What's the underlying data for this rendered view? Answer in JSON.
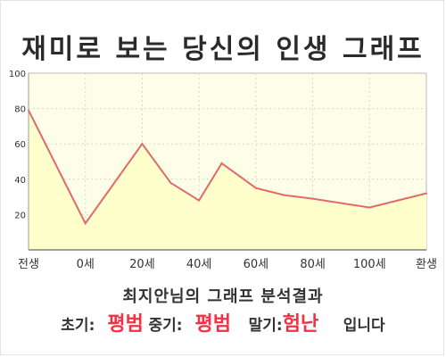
{
  "title": "재미로 보는 당신의 인생 그래프",
  "subtitle": "최지안님의 그래프 분석결과",
  "result": {
    "early_label": "초기:",
    "early_value": "평범",
    "mid_label": "중기:",
    "mid_value": "평범",
    "late_label": "말기:",
    "late_value": "험난",
    "suffix": "입니다"
  },
  "colors": {
    "line": "#e06a6a",
    "fill": "#ffffcc",
    "plot_bg": "#fefee8",
    "result_value": "#ee3344"
  },
  "chart_data": {
    "type": "area",
    "x_ticks": [
      "전생",
      "0세",
      "20세",
      "40세",
      "60세",
      "80세",
      "100세",
      "환생"
    ],
    "y_ticks": [
      20,
      40,
      60,
      80,
      100
    ],
    "ylim": [
      0,
      100
    ],
    "x": [
      0,
      1,
      2,
      2.5,
      3,
      3.4,
      4,
      4.5,
      5,
      6,
      7
    ],
    "values": [
      79,
      15,
      60,
      38,
      28,
      49,
      35,
      31,
      29,
      24,
      32
    ],
    "grid": true
  }
}
